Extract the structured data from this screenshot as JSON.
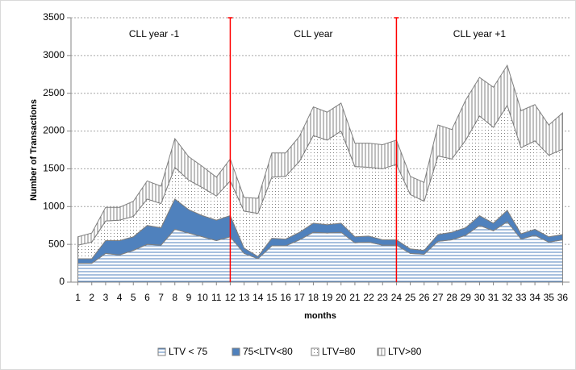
{
  "chart_data": {
    "type": "stacked-area",
    "xlabel": "months",
    "ylabel": "Number of Transactions",
    "x": [
      1,
      2,
      3,
      4,
      5,
      6,
      7,
      8,
      9,
      10,
      11,
      12,
      13,
      14,
      15,
      16,
      17,
      18,
      19,
      20,
      21,
      22,
      23,
      24,
      25,
      26,
      27,
      28,
      29,
      30,
      31,
      32,
      33,
      34,
      35,
      36
    ],
    "xlim": [
      0.5,
      36.5
    ],
    "xticks": [
      1,
      2,
      3,
      4,
      5,
      6,
      7,
      8,
      9,
      10,
      11,
      12,
      13,
      14,
      15,
      16,
      17,
      18,
      19,
      20,
      21,
      22,
      23,
      24,
      25,
      26,
      27,
      28,
      29,
      30,
      31,
      32,
      33,
      34,
      35,
      36
    ],
    "ylim": [
      0,
      3500
    ],
    "yticks": [
      0,
      500,
      1000,
      1500,
      2000,
      2500,
      3000,
      3500
    ],
    "grid": true,
    "vlines": [
      12,
      24
    ],
    "vline_color": "#ff0000",
    "annotations": [
      {
        "text": "CLL year -1",
        "x": 6.5
      },
      {
        "text": "CLL year",
        "x": 18
      },
      {
        "text": "CLL year +1",
        "x": 30
      }
    ],
    "series": [
      {
        "name": "LTV < 75",
        "color": "#4f81bd",
        "pattern": "horizontal",
        "values": [
          250,
          250,
          380,
          360,
          420,
          500,
          490,
          700,
          650,
          600,
          550,
          600,
          380,
          310,
          480,
          480,
          560,
          660,
          650,
          660,
          520,
          530,
          490,
          490,
          380,
          370,
          540,
          560,
          620,
          750,
          680,
          800,
          570,
          620,
          530,
          560
        ]
      },
      {
        "name": "75<LTV<80",
        "color": "#4f81bd",
        "pattern": "solid",
        "values": [
          60,
          60,
          170,
          190,
          180,
          250,
          230,
          400,
          310,
          280,
          270,
          280,
          70,
          30,
          100,
          90,
          100,
          120,
          110,
          120,
          80,
          80,
          70,
          70,
          60,
          50,
          90,
          100,
          100,
          130,
          100,
          150,
          70,
          80,
          70,
          70
        ]
      },
      {
        "name": "LTV=80",
        "color": "#7f7f7f",
        "pattern": "dots",
        "values": [
          180,
          220,
          260,
          270,
          270,
          350,
          320,
          420,
          390,
          370,
          320,
          460,
          490,
          570,
          810,
          830,
          940,
          1160,
          1120,
          1220,
          930,
          910,
          940,
          1000,
          720,
          650,
          1040,
          970,
          1160,
          1320,
          1270,
          1390,
          1140,
          1170,
          1080,
          1130
        ]
      },
      {
        "name": "LTV>80",
        "color": "#7f7f7f",
        "pattern": "vertical",
        "values": [
          110,
          120,
          180,
          170,
          200,
          240,
          230,
          380,
          310,
          280,
          250,
          290,
          180,
          200,
          320,
          310,
          330,
          380,
          370,
          370,
          310,
          320,
          320,
          320,
          240,
          250,
          410,
          390,
          530,
          510,
          530,
          530,
          490,
          480,
          400,
          480
        ]
      }
    ],
    "legend": "bottom"
  }
}
